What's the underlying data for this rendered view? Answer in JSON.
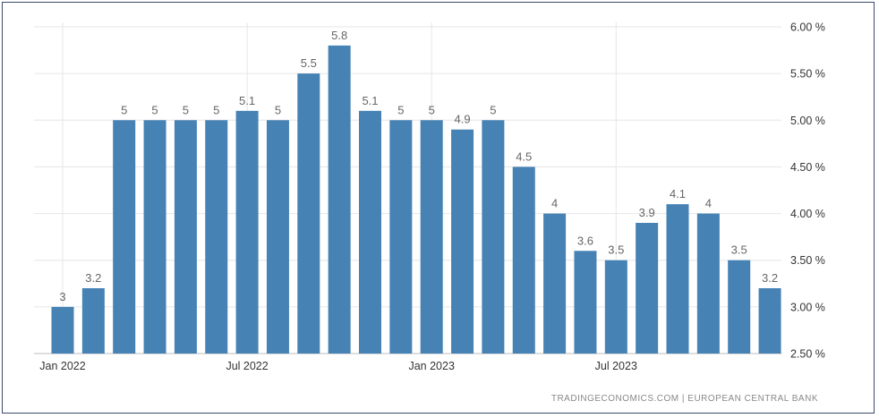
{
  "chart_data": {
    "type": "bar",
    "categories": [
      "Jan 2022",
      "Feb 2022",
      "Mar 2022",
      "Apr 2022",
      "May 2022",
      "Jun 2022",
      "Jul 2022",
      "Aug 2022",
      "Sep 2022",
      "Oct 2022",
      "Nov 2022",
      "Dec 2022",
      "Jan 2023",
      "Feb 2023",
      "Mar 2023",
      "Apr 2023",
      "May 2023",
      "Jun 2023",
      "Jul 2023",
      "Aug 2023",
      "Sep 2023",
      "Oct 2023",
      "Nov 2023",
      "Dec 2023"
    ],
    "values": [
      3,
      3.2,
      5,
      5,
      5,
      5,
      5.1,
      5,
      5.5,
      5.8,
      5.1,
      5,
      5,
      4.9,
      5,
      4.5,
      4,
      3.6,
      3.5,
      3.9,
      4.1,
      4,
      3.5,
      3.2
    ],
    "data_labels": [
      "3",
      "3.2",
      "5",
      "5",
      "5",
      "5",
      "5.1",
      "5",
      "5.5",
      "5.8",
      "5.1",
      "5",
      "5",
      "4.9",
      "5",
      "4.5",
      "4",
      "3.6",
      "3.5",
      "3.9",
      "4.1",
      "4",
      "3.5",
      "3.2"
    ],
    "x_tick_labels": [
      {
        "index": 0,
        "label": "Jan 2022"
      },
      {
        "index": 6,
        "label": "Jul 2022"
      },
      {
        "index": 12,
        "label": "Jan 2023"
      },
      {
        "index": 18,
        "label": "Jul 2023"
      }
    ],
    "y_ticks": [
      2.5,
      3.0,
      3.5,
      4.0,
      4.5,
      5.0,
      5.5,
      6.0
    ],
    "y_tick_labels": [
      "2.50 %",
      "3.00 %",
      "3.50 %",
      "4.00 %",
      "4.50 %",
      "5.00 %",
      "5.50 %",
      "6.00 %"
    ],
    "ylim": [
      2.5,
      6.0
    ],
    "title": "",
    "xlabel": "",
    "ylabel": "",
    "grid": true,
    "y_axis_side": "right",
    "bar_color": "#4682b4",
    "source": "TRADINGECONOMICS.COM  |  EUROPEAN CENTRAL BANK"
  }
}
